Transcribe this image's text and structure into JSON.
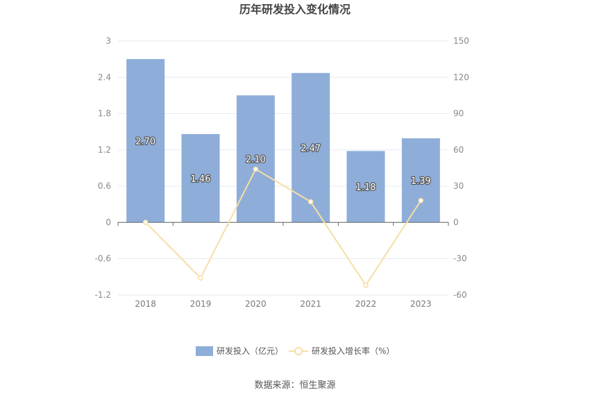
{
  "chart_data": {
    "type": "bar",
    "title": "历年研发投入变化情况",
    "categories": [
      "2018",
      "2019",
      "2020",
      "2021",
      "2022",
      "2023"
    ],
    "series": [
      {
        "name": "研发投入（亿元）",
        "type": "bar",
        "axis": "left",
        "color": "#8eadd9",
        "values": [
          2.7,
          1.46,
          2.1,
          2.47,
          1.18,
          1.39
        ],
        "labels": [
          "2.70",
          "1.46",
          "2.10",
          "2.47",
          "1.18",
          "1.39"
        ]
      },
      {
        "name": "研发投入增长率（%）",
        "type": "line",
        "axis": "right",
        "color": "#f7dea6",
        "values": [
          0,
          -46,
          44,
          17,
          -52,
          18
        ]
      }
    ],
    "y_left": {
      "min": -1.2,
      "max": 3,
      "ticks": [
        "3",
        "2.4",
        "1.8",
        "1.2",
        "0.6",
        "0",
        "-0.6",
        "-1.2"
      ]
    },
    "y_right": {
      "min": -60,
      "max": 150,
      "ticks": [
        "150",
        "120",
        "90",
        "60",
        "30",
        "0",
        "-30",
        "-60"
      ]
    },
    "grid": true,
    "legend_position": "bottom-center"
  },
  "source": "数据来源：恒生聚源"
}
